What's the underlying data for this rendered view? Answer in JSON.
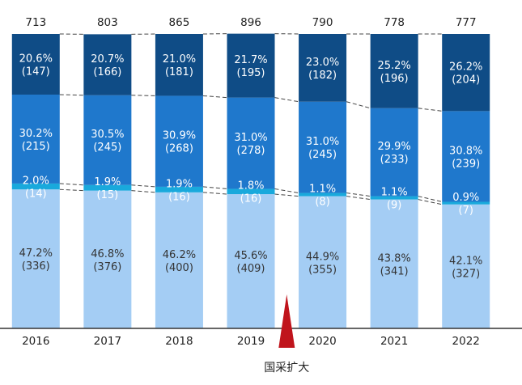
{
  "chart_data": {
    "type": "bar",
    "stacked": true,
    "percent_stacked": true,
    "categories": [
      "2016",
      "2017",
      "2018",
      "2019",
      "2020",
      "2021",
      "2022"
    ],
    "totals": [
      713,
      803,
      865,
      896,
      790,
      778,
      777
    ],
    "series": [
      {
        "color": "#a4cdf4",
        "text_color": "#333333",
        "percent_labels": [
          "47.2%",
          "46.8%",
          "46.2%",
          "45.6%",
          "44.9%",
          "43.8%",
          "42.1%"
        ],
        "value_labels": [
          "(336)",
          "(376)",
          "(400)",
          "(409)",
          "(355)",
          "(341)",
          "(327)"
        ],
        "percent": [
          47.2,
          46.8,
          46.2,
          45.6,
          44.9,
          43.8,
          42.1
        ],
        "values": [
          336,
          376,
          400,
          409,
          355,
          341,
          327
        ]
      },
      {
        "color": "#19a9dc",
        "text_color": "#ffffff",
        "percent_labels": [
          "2.0%",
          "1.9%",
          "1.9%",
          "1.8%",
          "1.1%",
          "1.1%",
          "0.9%"
        ],
        "value_labels": [
          "(14)",
          "(15)",
          "(16)",
          "(16)",
          "(8)",
          "(9)",
          "(7)"
        ],
        "percent": [
          2.0,
          1.9,
          1.9,
          1.8,
          1.1,
          1.1,
          0.9
        ],
        "values": [
          14,
          15,
          16,
          16,
          8,
          9,
          7
        ]
      },
      {
        "color": "#1f78cc",
        "text_color": "#ffffff",
        "percent_labels": [
          "30.2%",
          "30.5%",
          "30.9%",
          "31.0%",
          "31.0%",
          "29.9%",
          "30.8%"
        ],
        "value_labels": [
          "(215)",
          "(245)",
          "(268)",
          "(278)",
          "(245)",
          "(233)",
          "(239)"
        ],
        "percent": [
          30.2,
          30.5,
          30.9,
          31.0,
          31.0,
          29.9,
          30.8
        ],
        "values": [
          215,
          245,
          268,
          278,
          245,
          233,
          239
        ]
      },
      {
        "color": "#0f4c86",
        "text_color": "#ffffff",
        "percent_labels": [
          "20.6%",
          "20.7%",
          "21.0%",
          "21.7%",
          "23.0%",
          "25.2%",
          "26.2%"
        ],
        "value_labels": [
          "(147)",
          "(166)",
          "(181)",
          "(195)",
          "(182)",
          "(196)",
          "(204)"
        ],
        "percent": [
          20.6,
          20.7,
          21.0,
          21.7,
          23.0,
          25.2,
          26.2
        ],
        "values": [
          147,
          166,
          181,
          195,
          182,
          196,
          204
        ]
      }
    ],
    "annotation": {
      "text": "国采扩大",
      "marker": "red-triangle",
      "color": "#c0141c",
      "position_between": [
        "2019",
        "2020"
      ]
    },
    "connector_lines": "dashed",
    "grid": false,
    "legend": "none"
  }
}
